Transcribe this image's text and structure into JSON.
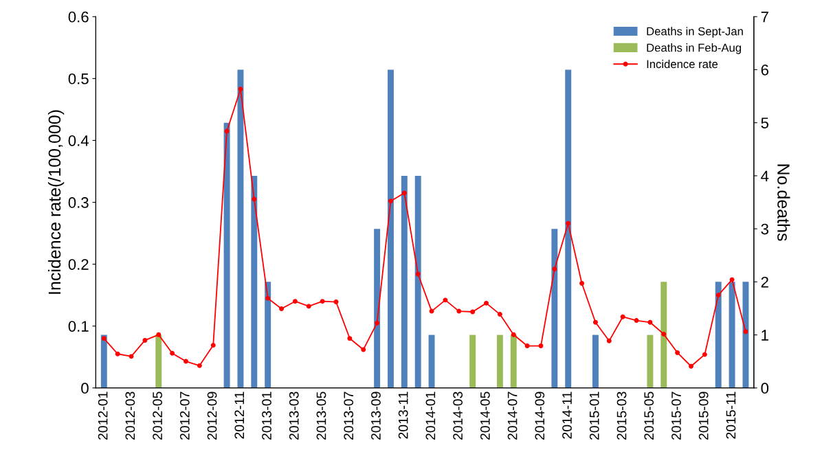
{
  "chart_data": {
    "type": "bar",
    "ylabel": "Incidence rate(/100,000)",
    "y2label": "No.deaths",
    "categories": [
      "2012-01",
      null,
      "2012-03",
      null,
      "2012-05",
      null,
      "2012-07",
      null,
      "2012-09",
      null,
      "2012-11",
      null,
      "2013-01",
      null,
      "2013-03",
      null,
      "2013-05",
      null,
      "2013-07",
      null,
      "2013-09",
      null,
      "2013-11",
      null,
      "2014-01",
      null,
      "2014-03",
      null,
      "2014-05",
      null,
      "2014-07",
      null,
      "2014-09",
      null,
      "2014-11",
      null,
      "2015-01",
      null,
      "2015-03",
      null,
      "2015-05",
      null,
      "2015-07",
      null,
      "2015-09",
      null,
      "2015-11",
      null
    ],
    "series": [
      {
        "name": "Deaths in Sept-Jan",
        "axis": "y2",
        "color": "#4f81bd",
        "values": [
          1,
          null,
          null,
          null,
          null,
          null,
          null,
          null,
          null,
          5,
          6,
          4,
          2,
          null,
          null,
          null,
          null,
          null,
          null,
          null,
          3,
          6,
          4,
          4,
          1,
          null,
          null,
          null,
          null,
          null,
          null,
          null,
          null,
          3,
          6,
          null,
          1,
          null,
          null,
          null,
          null,
          null,
          null,
          null,
          null,
          2,
          2,
          2
        ]
      },
      {
        "name": "Deaths in Feb-Aug",
        "axis": "y2",
        "color": "#9bbb59",
        "values": [
          null,
          null,
          null,
          null,
          1,
          null,
          null,
          null,
          null,
          null,
          null,
          null,
          null,
          null,
          null,
          null,
          null,
          null,
          null,
          null,
          null,
          null,
          null,
          null,
          null,
          null,
          null,
          1,
          null,
          1,
          1,
          null,
          null,
          null,
          null,
          null,
          null,
          null,
          null,
          null,
          1,
          2,
          null,
          null,
          null,
          null,
          null,
          null
        ]
      },
      {
        "name": "Incidence rate",
        "type": "line",
        "axis": "y",
        "color": "#ff0000",
        "marker": "circle",
        "line_style": "solid",
        "values": [
          0.08,
          0.055,
          0.051,
          0.077,
          0.086,
          0.056,
          0.043,
          0.036,
          0.069,
          0.415,
          0.483,
          0.305,
          0.145,
          0.128,
          0.14,
          0.132,
          0.14,
          0.139,
          0.08,
          0.062,
          0.105,
          0.302,
          0.315,
          0.184,
          0.124,
          0.142,
          0.124,
          0.123,
          0.137,
          0.119,
          0.086,
          0.068,
          0.068,
          0.192,
          0.266,
          0.169,
          0.106,
          0.076,
          0.115,
          0.109,
          0.106,
          0.087,
          0.057,
          0.035,
          0.054,
          0.15,
          0.175,
          0.091
        ]
      }
    ],
    "ylim": [
      0,
      0.6
    ],
    "yticks": [
      0,
      0.1,
      0.2,
      0.3,
      0.4,
      0.5,
      0.6
    ],
    "y2lim": [
      0,
      7
    ],
    "y2ticks": [
      0,
      1,
      2,
      3,
      4,
      5,
      6,
      7
    ],
    "grid": false,
    "legend": "top right"
  }
}
